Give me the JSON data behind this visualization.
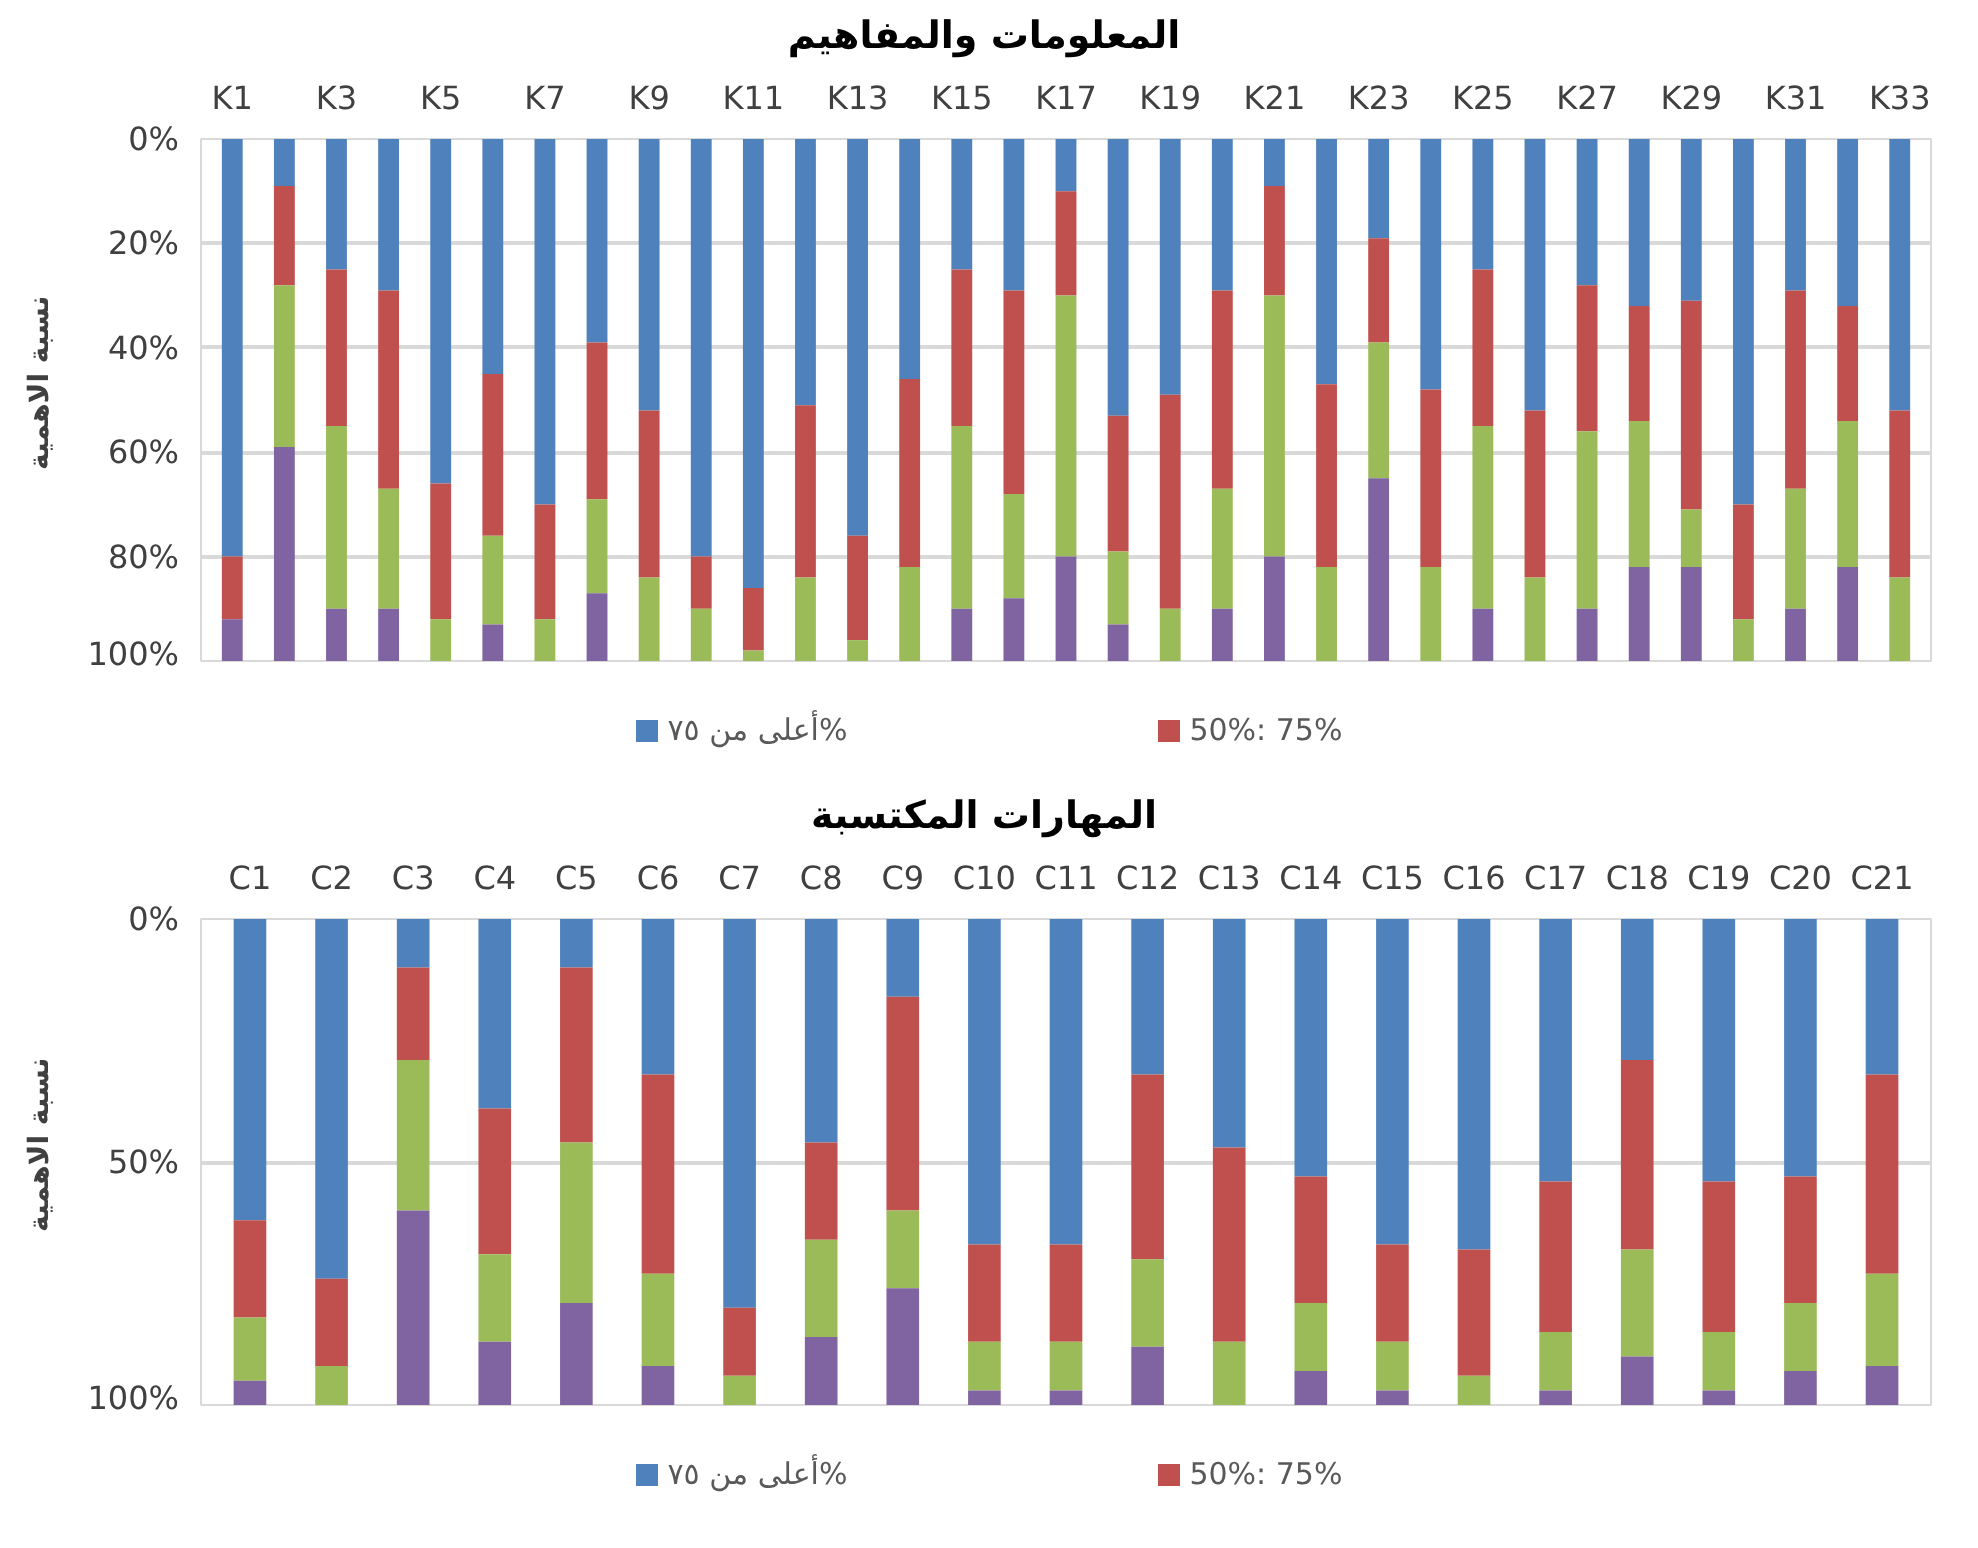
{
  "chart_data": [
    {
      "type": "bar",
      "stacked": true,
      "title": "المعلومات والمفاهيم",
      "ylabel": "نسبة الاهمية",
      "categories": [
        "K1",
        null,
        "K3",
        null,
        "K5",
        null,
        "K7",
        null,
        "K9",
        null,
        "K11",
        null,
        "K13",
        null,
        "K15",
        null,
        "K17",
        null,
        "K19",
        null,
        "K21",
        null,
        "K23",
        null,
        "K25",
        null,
        "K27",
        null,
        "K29",
        null,
        "K31",
        null,
        "K33"
      ],
      "series": [
        {
          "name": "أعلى من ٧٥%",
          "color": "#4f81bd",
          "values": [
            80,
            9,
            25,
            29,
            66,
            45,
            70,
            39,
            52,
            80,
            86,
            51,
            76,
            46,
            25,
            29,
            10,
            53,
            49,
            29,
            9,
            47,
            19,
            48,
            25,
            52,
            28,
            32,
            31,
            70,
            29,
            32,
            52
          ]
        },
        {
          "name": "50%: 75%",
          "color": "#c0504d",
          "values": [
            12,
            19,
            30,
            38,
            26,
            31,
            22,
            30,
            32,
            10,
            12,
            33,
            20,
            36,
            30,
            39,
            20,
            26,
            41,
            38,
            21,
            35,
            20,
            34,
            30,
            32,
            28,
            22,
            40,
            22,
            38,
            22,
            32
          ]
        },
        {
          "color": "#9bbb59",
          "values": [
            0,
            31,
            35,
            23,
            8,
            17,
            8,
            18,
            16,
            10,
            2,
            16,
            4,
            18,
            35,
            20,
            50,
            14,
            10,
            23,
            50,
            18,
            26,
            18,
            35,
            16,
            34,
            28,
            11,
            8,
            23,
            28,
            16
          ]
        },
        {
          "color": "#8064a2",
          "values": [
            8,
            41,
            10,
            10,
            0,
            7,
            0,
            13,
            0,
            0,
            0,
            0,
            0,
            0,
            10,
            12,
            20,
            7,
            0,
            10,
            20,
            0,
            35,
            0,
            10,
            0,
            10,
            18,
            18,
            0,
            10,
            18,
            0
          ]
        }
      ],
      "ylim": [
        100,
        0
      ],
      "yticks": [
        {
          "value": 0,
          "label": "0%"
        },
        {
          "value": 20,
          "label": "20%"
        },
        {
          "value": 40,
          "label": "40%"
        },
        {
          "value": 60,
          "label": "60%"
        },
        {
          "value": 80,
          "label": "80%"
        },
        {
          "value": 100,
          "label": "100%"
        }
      ],
      "grid": "y",
      "legend": "bottom"
    },
    {
      "type": "bar",
      "stacked": true,
      "title": "المهارات المكتسبة",
      "ylabel": "نسبة الاهمية",
      "categories": [
        "C1",
        "C2",
        "C3",
        "C4",
        "C5",
        "C6",
        "C7",
        "C8",
        "C9",
        "C10",
        "C11",
        "C12",
        "C13",
        "C14",
        "C15",
        "C16",
        "C17",
        "C18",
        "C19",
        "C20",
        "C21"
      ],
      "series": [
        {
          "name": "أعلى من ٧٥%",
          "color": "#4f81bd",
          "values": [
            62,
            74,
            10,
            39,
            10,
            32,
            80,
            46,
            16,
            67,
            67,
            32,
            47,
            53,
            67,
            68,
            54,
            29,
            54,
            53,
            32
          ]
        },
        {
          "name": "50%: 75%",
          "color": "#c0504d",
          "values": [
            20,
            18,
            19,
            30,
            36,
            41,
            14,
            20,
            44,
            20,
            20,
            38,
            40,
            26,
            20,
            26,
            31,
            39,
            31,
            26,
            41
          ]
        },
        {
          "color": "#9bbb59",
          "values": [
            13,
            8,
            31,
            18,
            33,
            19,
            6,
            20,
            16,
            10,
            10,
            18,
            13,
            14,
            10,
            6,
            12,
            22,
            12,
            14,
            19
          ]
        },
        {
          "color": "#8064a2",
          "values": [
            5,
            0,
            40,
            13,
            21,
            8,
            0,
            14,
            24,
            3,
            3,
            12,
            0,
            7,
            3,
            0,
            3,
            10,
            3,
            7,
            8
          ]
        }
      ],
      "ylim": [
        100,
        0
      ],
      "yticks": [
        {
          "value": 0,
          "label": "0%"
        },
        {
          "value": 50,
          "label": "50%"
        },
        {
          "value": 100,
          "label": "100%"
        }
      ],
      "grid": "y",
      "legend": "bottom"
    }
  ]
}
